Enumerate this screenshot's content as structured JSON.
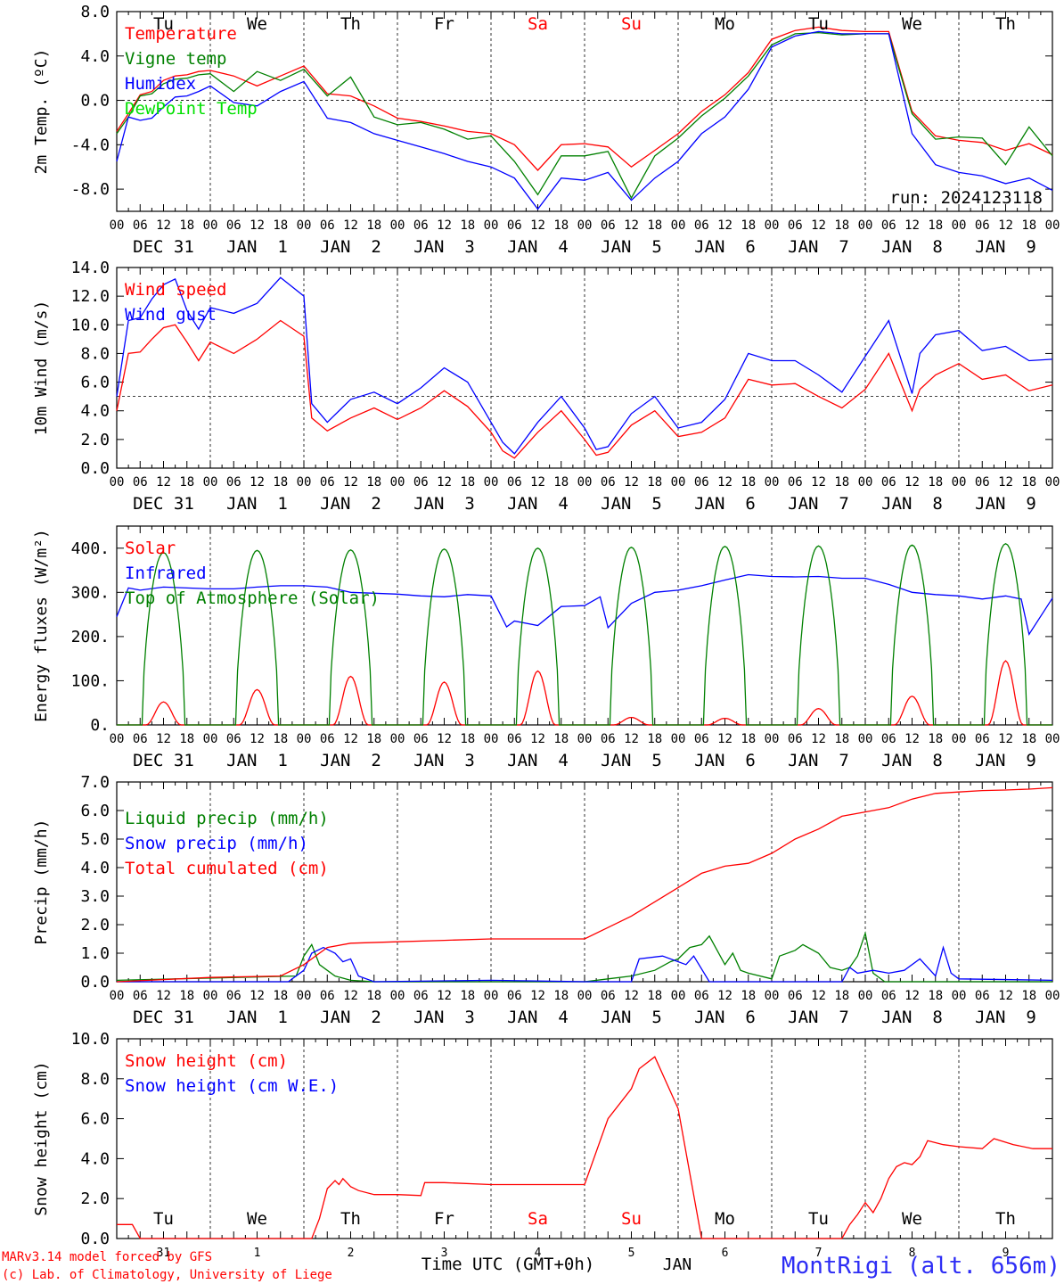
{
  "colors": {
    "temperature": "#ff0000",
    "vigne": "#008000",
    "humidex": "#0000ff",
    "dewpoint": "#00e000",
    "weekend": "#ff0000",
    "station": "#2d2df5",
    "footer": "#ff0000"
  },
  "day_labels_top": [
    "Tu",
    "We",
    "Th",
    "Fr",
    "Sa",
    "Su",
    "Mo",
    "Tu",
    "We",
    "Th"
  ],
  "weekend_days": [
    "Sa",
    "Su"
  ],
  "hour_ticks": [
    "00",
    "06",
    "12",
    "18"
  ],
  "date_labels": [
    "DEC 31",
    "JAN  1",
    "JAN  2",
    "JAN  3",
    "JAN  4",
    "JAN  5",
    "JAN  6",
    "JAN  7",
    "JAN  8",
    "JAN  9"
  ],
  "chart_data": [
    {
      "type": "line",
      "panel": "temperature",
      "ylabel": "2m Temp. (ºC)",
      "ylim": [
        -10,
        8
      ],
      "yticks": [
        "8.0",
        "4.0",
        "0.0",
        "-4.0",
        "-8.0"
      ],
      "reference_line": 0,
      "annotation": "run: 2024123118",
      "x_unit": "hours since DEC 31 00 UTC",
      "series": [
        {
          "name": "Temperature",
          "color": "#ff0000",
          "x": [
            0,
            3,
            6,
            9,
            12,
            15,
            18,
            21,
            24,
            30,
            36,
            42,
            48,
            54,
            60,
            66,
            72,
            78,
            84,
            90,
            96,
            102,
            108,
            114,
            120,
            126,
            132,
            138,
            144,
            150,
            156,
            162,
            168,
            174,
            180,
            186,
            192,
            198,
            204,
            210,
            216,
            222,
            228,
            234,
            240
          ],
          "y": [
            -2.8,
            -1.2,
            0.5,
            0.8,
            1.8,
            2.2,
            2.3,
            2.6,
            2.7,
            2.2,
            1.3,
            2.2,
            3.1,
            0.6,
            0.4,
            -0.5,
            -1.6,
            -1.9,
            -2.3,
            -2.8,
            -3.0,
            -4.0,
            -6.3,
            -4.0,
            -3.9,
            -4.2,
            -6.0,
            -4.5,
            -3.0,
            -1.0,
            0.5,
            2.5,
            5.5,
            6.3,
            6.6,
            6.3,
            6.2,
            6.2,
            -1.0,
            -3.2,
            -3.6,
            -3.8,
            -4.5,
            -3.9,
            -4.9
          ]
        },
        {
          "name": "Vigne temp",
          "color": "#008000",
          "x": [
            0,
            3,
            6,
            9,
            12,
            15,
            18,
            21,
            24,
            30,
            36,
            42,
            48,
            54,
            60,
            66,
            72,
            78,
            84,
            90,
            96,
            102,
            108,
            114,
            120,
            126,
            132,
            138,
            144,
            150,
            156,
            162,
            168,
            174,
            180,
            186,
            192,
            198,
            204,
            210,
            216,
            222,
            228,
            234,
            240
          ],
          "y": [
            -3.0,
            -1.5,
            0.4,
            0.6,
            1.5,
            1.9,
            2.0,
            2.3,
            2.4,
            0.8,
            2.6,
            1.8,
            2.8,
            0.4,
            2.1,
            -1.5,
            -2.2,
            -2.0,
            -2.6,
            -3.5,
            -3.2,
            -5.5,
            -8.5,
            -5.0,
            -5.0,
            -4.6,
            -8.8,
            -5.0,
            -3.4,
            -1.4,
            0.2,
            2.2,
            5.0,
            6.0,
            6.1,
            5.9,
            6.0,
            6.0,
            -1.2,
            -3.5,
            -3.3,
            -3.4,
            -5.8,
            -2.4,
            -5.0
          ]
        },
        {
          "name": "Humidex",
          "color": "#0000ff",
          "x": [
            0,
            3,
            6,
            9,
            12,
            15,
            18,
            21,
            24,
            30,
            36,
            42,
            48,
            54,
            60,
            66,
            72,
            78,
            84,
            90,
            96,
            102,
            108,
            114,
            120,
            126,
            132,
            138,
            144,
            150,
            156,
            162,
            168,
            174,
            180,
            186,
            192,
            198,
            204,
            210,
            216,
            222,
            228,
            234,
            240
          ],
          "y": [
            -5.5,
            -1.5,
            -1.8,
            -1.6,
            -0.6,
            0.3,
            0.4,
            0.8,
            1.3,
            -0.2,
            -0.5,
            0.8,
            1.7,
            -1.6,
            -2.0,
            -3.0,
            -3.6,
            -4.2,
            -4.8,
            -5.5,
            -6.0,
            -7.0,
            -9.8,
            -7.0,
            -7.2,
            -6.5,
            -9.0,
            -7.0,
            -5.5,
            -3.0,
            -1.5,
            1.0,
            4.8,
            5.8,
            6.2,
            6.0,
            6.0,
            6.0,
            -3.0,
            -5.8,
            -6.5,
            -6.8,
            -7.5,
            -7.0,
            -8.1
          ]
        },
        {
          "name": "DewPoint Temp",
          "color": "#00e000",
          "x": [],
          "y": []
        }
      ]
    },
    {
      "type": "line",
      "panel": "wind",
      "ylabel": "10m Wind (m/s)",
      "ylim": [
        0,
        14
      ],
      "yticks": [
        "14.0",
        "12.0",
        "10.0",
        "8.0",
        "6.0",
        "4.0",
        "2.0",
        "0.0"
      ],
      "reference_line": 5,
      "x_unit": "hours since DEC 31 00 UTC",
      "series": [
        {
          "name": "Wind speed",
          "color": "#ff0000",
          "x": [
            0,
            3,
            6,
            9,
            12,
            15,
            18,
            21,
            24,
            30,
            36,
            42,
            48,
            50,
            54,
            60,
            66,
            72,
            78,
            84,
            90,
            96,
            99,
            102,
            108,
            114,
            120,
            123,
            126,
            132,
            138,
            144,
            150,
            156,
            162,
            168,
            174,
            180,
            186,
            192,
            198,
            204,
            206,
            210,
            216,
            222,
            228,
            234,
            240
          ],
          "y": [
            4.0,
            8.0,
            8.1,
            9.0,
            9.8,
            10.0,
            8.8,
            7.5,
            8.8,
            8.0,
            9.0,
            10.3,
            9.2,
            3.5,
            2.6,
            3.5,
            4.2,
            3.4,
            4.2,
            5.4,
            4.3,
            2.5,
            1.2,
            0.7,
            2.5,
            4.0,
            2.0,
            0.9,
            1.1,
            3.0,
            4.0,
            2.2,
            2.5,
            3.5,
            6.2,
            5.8,
            5.9,
            5.0,
            4.2,
            5.5,
            8.0,
            4.0,
            5.5,
            6.5,
            7.3,
            6.2,
            6.5,
            5.4,
            5.8
          ]
        },
        {
          "name": "Wind gust",
          "color": "#0000ff",
          "x": [
            0,
            3,
            6,
            9,
            12,
            15,
            18,
            21,
            24,
            30,
            36,
            42,
            48,
            50,
            54,
            60,
            66,
            72,
            78,
            84,
            90,
            96,
            99,
            102,
            108,
            114,
            120,
            123,
            126,
            132,
            138,
            144,
            150,
            156,
            162,
            168,
            174,
            180,
            186,
            192,
            198,
            204,
            206,
            210,
            216,
            222,
            228,
            234,
            240
          ],
          "y": [
            5.0,
            10.3,
            10.5,
            11.8,
            12.8,
            13.2,
            11.0,
            9.7,
            11.2,
            10.8,
            11.5,
            13.3,
            12.0,
            4.5,
            3.2,
            4.8,
            5.3,
            4.5,
            5.6,
            7.0,
            6.0,
            3.2,
            1.8,
            1.0,
            3.2,
            5.0,
            2.8,
            1.3,
            1.5,
            3.8,
            5.0,
            2.8,
            3.2,
            4.8,
            8.0,
            7.5,
            7.5,
            6.5,
            5.3,
            7.8,
            10.3,
            5.2,
            8.0,
            9.3,
            9.6,
            8.2,
            8.5,
            7.5,
            7.6
          ]
        }
      ]
    },
    {
      "type": "line",
      "panel": "energy",
      "ylabel": "Energy fluxes (W/m²)",
      "ylim": [
        0,
        450
      ],
      "yticks": [
        "400.",
        "300.",
        "200.",
        "100.",
        "0."
      ],
      "x_unit": "hours since DEC 31 00 UTC",
      "series": [
        {
          "name": "Solar",
          "color": "#ff0000",
          "peaks": [
            52,
            80,
            110,
            97,
            122,
            17,
            15,
            37,
            65,
            145
          ]
        },
        {
          "name": "Infrared",
          "color": "#0000ff",
          "x": [
            0,
            3,
            6,
            12,
            18,
            24,
            30,
            36,
            42,
            48,
            54,
            60,
            66,
            72,
            78,
            84,
            90,
            96,
            100,
            102,
            108,
            114,
            120,
            124,
            126,
            132,
            138,
            144,
            150,
            156,
            162,
            168,
            174,
            180,
            186,
            192,
            198,
            204,
            210,
            216,
            222,
            228,
            232,
            234,
            240
          ],
          "y": [
            245,
            310,
            305,
            312,
            310,
            308,
            308,
            312,
            315,
            315,
            312,
            300,
            298,
            296,
            292,
            290,
            295,
            292,
            222,
            235,
            225,
            268,
            270,
            290,
            220,
            275,
            300,
            305,
            315,
            328,
            340,
            336,
            335,
            336,
            332,
            332,
            318,
            300,
            295,
            292,
            285,
            292,
            285,
            205,
            287
          ]
        },
        {
          "name": "Top of Atmosphere (Solar)",
          "color": "#008000",
          "peaks": [
            390,
            395,
            396,
            398,
            400,
            402,
            404,
            405,
            407,
            410
          ]
        }
      ]
    },
    {
      "type": "line",
      "panel": "precip",
      "ylabel": "Precip (mm/h)",
      "ylim": [
        0,
        7
      ],
      "yticks": [
        "7.0",
        "6.0",
        "5.0",
        "4.0",
        "3.0",
        "2.0",
        "1.0",
        "0.0"
      ],
      "x_unit": "hours since DEC 31 00 UTC",
      "series": [
        {
          "name": "Liquid precip (mm/h)",
          "color": "#008000",
          "x": [
            0,
            46,
            48,
            50,
            52,
            56,
            60,
            66,
            120,
            126,
            132,
            138,
            142,
            144,
            147,
            150,
            152,
            156,
            158,
            160,
            162,
            168,
            170,
            174,
            176,
            180,
            183,
            186,
            188,
            190,
            192,
            194,
            197,
            200,
            240
          ],
          "y": [
            0.05,
            0.2,
            0.9,
            1.3,
            0.6,
            0.2,
            0.05,
            0.0,
            0.0,
            0.1,
            0.2,
            0.4,
            0.7,
            0.8,
            1.2,
            1.3,
            1.6,
            0.6,
            1.0,
            0.4,
            0.3,
            0.1,
            0.9,
            1.1,
            1.3,
            1.0,
            0.5,
            0.4,
            0.5,
            0.9,
            1.7,
            0.3,
            0.0,
            0.0,
            0.0
          ]
        },
        {
          "name": "Snow precip (mm/h)",
          "color": "#0000ff",
          "x": [
            0,
            44,
            48,
            50,
            53,
            56,
            58,
            60,
            62,
            66,
            96,
            120,
            132,
            134,
            140,
            146,
            148,
            152,
            156,
            158,
            170,
            186,
            188,
            190,
            194,
            198,
            202,
            206,
            210,
            212,
            214,
            216,
            240
          ],
          "y": [
            0.0,
            0.0,
            0.4,
            1.0,
            1.2,
            1.0,
            0.7,
            0.8,
            0.2,
            0.0,
            0.05,
            0.0,
            0.0,
            0.8,
            0.9,
            0.6,
            0.9,
            0.0,
            0.0,
            0.0,
            0.0,
            0.0,
            0.5,
            0.3,
            0.4,
            0.3,
            0.4,
            0.8,
            0.2,
            1.2,
            0.3,
            0.1,
            0.05
          ]
        },
        {
          "name": "Total cumulated (cm)",
          "color": "#ff0000",
          "x": [
            0,
            24,
            42,
            48,
            54,
            60,
            72,
            84,
            96,
            108,
            120,
            126,
            132,
            138,
            144,
            150,
            156,
            162,
            168,
            174,
            180,
            186,
            192,
            198,
            204,
            210,
            216,
            222,
            228,
            234,
            240
          ],
          "y": [
            0.0,
            0.15,
            0.2,
            0.6,
            1.2,
            1.35,
            1.4,
            1.45,
            1.5,
            1.5,
            1.5,
            1.9,
            2.3,
            2.8,
            3.3,
            3.8,
            4.05,
            4.15,
            4.5,
            5.0,
            5.35,
            5.8,
            5.95,
            6.1,
            6.4,
            6.6,
            6.65,
            6.7,
            6.72,
            6.75,
            6.8
          ]
        }
      ]
    },
    {
      "type": "line",
      "panel": "snow",
      "ylabel": "Snow height (cm)",
      "ylim": [
        0,
        10
      ],
      "yticks": [
        "10.0",
        "8.0",
        "6.0",
        "4.0",
        "2.0",
        "0.0"
      ],
      "x_unit": "hours since DEC 31 00 UTC",
      "series": [
        {
          "name": "Snow height (cm)",
          "color": "#ff0000",
          "x": [
            0,
            4,
            6,
            50,
            52,
            54,
            56,
            57,
            58,
            60,
            62,
            66,
            72,
            78,
            79,
            84,
            96,
            108,
            110,
            120,
            126,
            132,
            134,
            138,
            144,
            150,
            156,
            186,
            188,
            190,
            192,
            194,
            196,
            198,
            200,
            202,
            204,
            206,
            208,
            212,
            216,
            222,
            225,
            230,
            235,
            240
          ],
          "y": [
            0.7,
            0.7,
            0.0,
            0.0,
            1.0,
            2.5,
            2.9,
            2.7,
            3.0,
            2.6,
            2.4,
            2.2,
            2.2,
            2.15,
            2.8,
            2.8,
            2.7,
            2.7,
            2.7,
            2.7,
            6.0,
            7.5,
            8.5,
            9.1,
            6.5,
            0.0,
            0.0,
            0.0,
            0.7,
            1.2,
            1.8,
            1.3,
            2.0,
            3.0,
            3.6,
            3.8,
            3.7,
            4.1,
            4.9,
            4.7,
            4.6,
            4.5,
            5.0,
            4.7,
            4.5,
            4.5
          ]
        },
        {
          "name": "Snow height (cm W.E.)",
          "color": "#0000ff",
          "x": [],
          "y": []
        }
      ],
      "day_labels": [
        "Tu",
        "We",
        "Th",
        "Fr",
        "Sa",
        "Su",
        "Mo",
        "Tu",
        "We",
        "Th"
      ],
      "day_numbers": [
        "31",
        "1",
        "2",
        "3",
        "4",
        "5",
        "6",
        "7",
        "8",
        "9"
      ]
    }
  ],
  "footer": {
    "xlabel": "Time UTC (GMT+0h)",
    "month": "JAN",
    "model_line1": "MARv3.14 model forced by GFS",
    "model_line2": "(c) Lab. of Climatology, University of Liege",
    "station": "MontRigi (alt. 656m)"
  }
}
